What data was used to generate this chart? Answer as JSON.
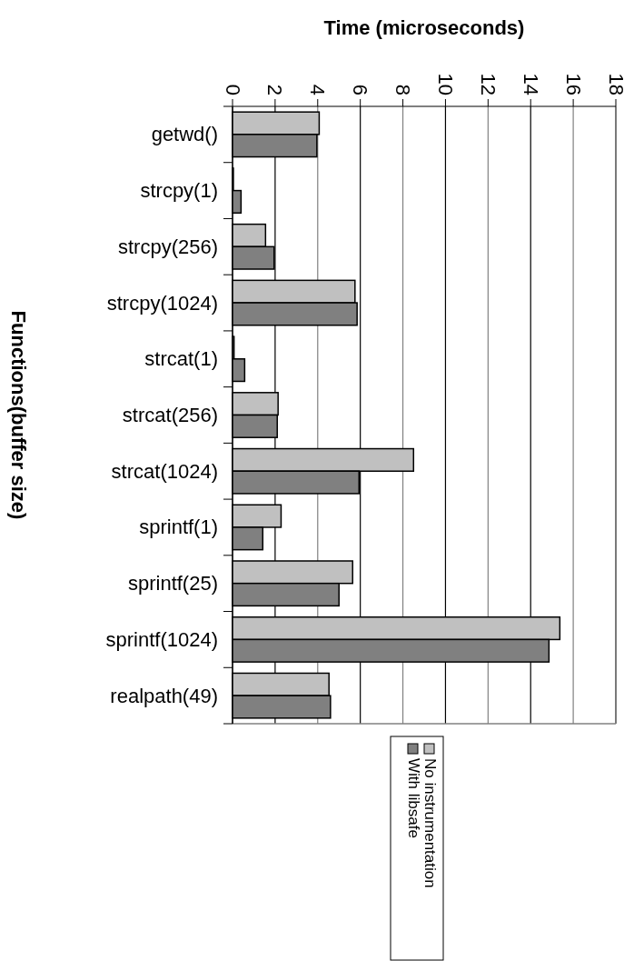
{
  "chart_data": {
    "type": "bar",
    "orientation": "horizontal",
    "xlabel": "Time (microseconds)",
    "ylabel": "Functions(buffer size)",
    "categories": [
      "getwd()",
      "strcpy(1)",
      "strcpy(256)",
      "strcpy(1024)",
      "strcat(1)",
      "strcat(256)",
      "strcat(1024)",
      "sprintf(1)",
      "sprintf(25)",
      "sprintf(1024)",
      "realpath(49)"
    ],
    "series": [
      {
        "name": "No instrumentation",
        "color": "#c0c0c0",
        "values": [
          4.07,
          0.04,
          1.55,
          5.75,
          0.07,
          2.14,
          8.5,
          2.28,
          5.64,
          15.37,
          4.53
        ]
      },
      {
        "name": "With libsafe",
        "color": "#808080",
        "values": [
          3.96,
          0.4,
          1.95,
          5.85,
          0.57,
          2.1,
          5.94,
          1.42,
          5.0,
          14.86,
          4.6
        ]
      }
    ],
    "xlim": [
      0,
      18
    ],
    "xticks": [
      0,
      2,
      4,
      6,
      8,
      10,
      12,
      14,
      16,
      18
    ],
    "grid": "x",
    "legend": "bottom"
  }
}
